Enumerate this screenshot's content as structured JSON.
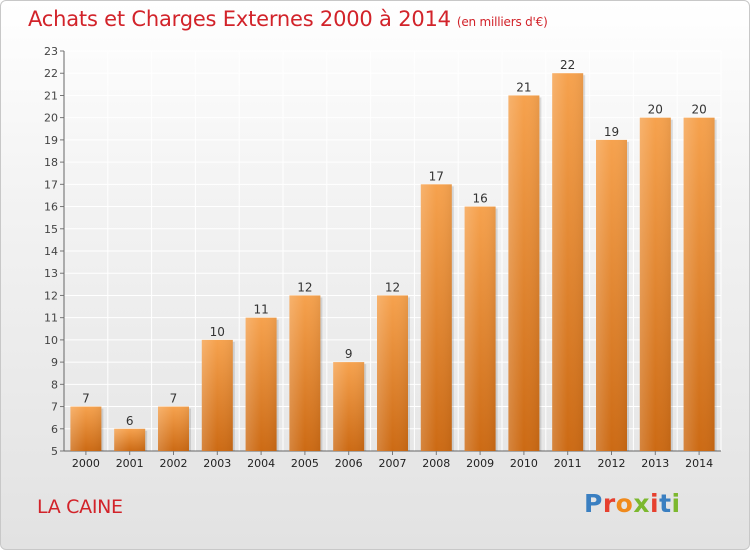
{
  "header": {
    "title": "Achats et Charges Externes 2000 à 2014",
    "unit": "(en milliers d'€)"
  },
  "footer": {
    "place": "LA CAINE",
    "logo_text": "Proxiti"
  },
  "colors": {
    "title": "#d2232a",
    "bar_light": "#f6a24e",
    "bar_dark": "#cc6a14",
    "logo_letters": [
      "#3a7fc1",
      "#e6402f",
      "#f08a1c",
      "#7cb82f",
      "#e6402f",
      "#3a7fc1",
      "#7cb82f"
    ]
  },
  "chart_data": {
    "type": "bar",
    "title": "Achats et Charges Externes 2000 à 2014",
    "subtitle": "(en milliers d'€)",
    "categories": [
      "2000",
      "2001",
      "2002",
      "2003",
      "2004",
      "2005",
      "2006",
      "2007",
      "2008",
      "2009",
      "2010",
      "2011",
      "2012",
      "2013",
      "2014"
    ],
    "values": [
      7,
      6,
      7,
      10,
      11,
      12,
      9,
      12,
      17,
      16,
      21,
      22,
      19,
      20,
      20
    ],
    "ylim": [
      5,
      23
    ],
    "yticks": [
      5,
      6,
      7,
      8,
      9,
      10,
      11,
      12,
      13,
      14,
      15,
      16,
      17,
      18,
      19,
      20,
      21,
      22,
      23
    ],
    "grid": true,
    "data_labels": true,
    "xlabel": "",
    "ylabel": ""
  }
}
